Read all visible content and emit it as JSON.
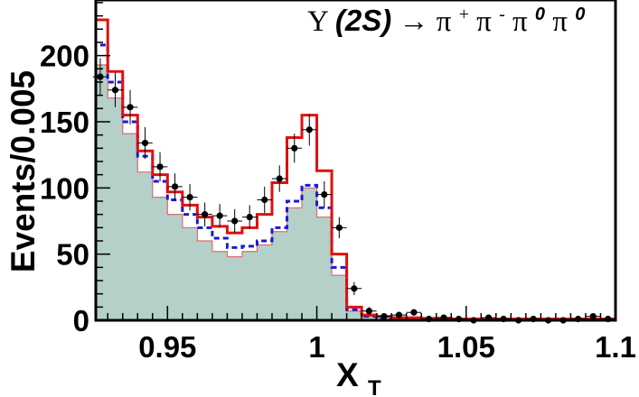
{
  "chart_data": {
    "type": "histogram",
    "title_parts": {
      "upsilon": "Υ",
      "state": "(2S)",
      "arrow": "→ π",
      "plus": "+",
      "pi2": " π",
      "minus": "-",
      "pi3": " π",
      "zero1": "0",
      "pi4": " π",
      "zero2": "0"
    },
    "xlabel": "X",
    "xlabel_sub": "T",
    "ylabel": "Events/0.005",
    "xlim": [
      0.926,
      1.1
    ],
    "ylim": [
      0,
      242
    ],
    "x_ticks": [
      {
        "value": 0.95,
        "label": "0.95"
      },
      {
        "value": 1.0,
        "label": "1"
      },
      {
        "value": 1.05,
        "label": "1.05"
      },
      {
        "value": 1.1,
        "label": "1.1"
      }
    ],
    "y_ticks": [
      {
        "value": 0,
        "label": "0"
      },
      {
        "value": 50,
        "label": "50"
      },
      {
        "value": 100,
        "label": "100"
      },
      {
        "value": 150,
        "label": "150"
      },
      {
        "value": 200,
        "label": "200"
      }
    ],
    "bin_edges": [
      0.926,
      0.93,
      0.935,
      0.94,
      0.945,
      0.95,
      0.955,
      0.96,
      0.965,
      0.97,
      0.975,
      0.98,
      0.985,
      0.99,
      0.995,
      1.0,
      1.005,
      1.01,
      1.015,
      1.02,
      1.025,
      1.03,
      1.035,
      1.04,
      1.045,
      1.05,
      1.055,
      1.06,
      1.065,
      1.07,
      1.075,
      1.08,
      1.085,
      1.09,
      1.095,
      1.1
    ],
    "series": [
      {
        "style": "filled",
        "color": "#b4d0c8",
        "edge_color": "#e06a6a",
        "values": [
          193,
          168,
          141,
          112,
          93,
          80,
          70,
          60,
          52,
          48,
          52,
          57,
          67,
          85,
          100,
          78,
          34,
          7,
          3,
          2,
          1.5,
          1.5,
          1,
          1,
          1,
          0.5,
          0.5,
          0.5,
          0.5,
          0.5,
          0.5,
          0.5,
          0.5,
          0.5,
          0.5
        ]
      },
      {
        "style": "dashed",
        "color": "#1a1ad6",
        "values": [
          208,
          180,
          150,
          124,
          105,
          91,
          80,
          70,
          62,
          55,
          56,
          60,
          70,
          90,
          102,
          85,
          40,
          8,
          3,
          2,
          1.5,
          1.5,
          1,
          1,
          1,
          0.5,
          0.5,
          0.5,
          0.5,
          0.5,
          0.5,
          0.5,
          0.5,
          0.5,
          0.5
        ]
      },
      {
        "style": "solid",
        "color": "#e01010",
        "values": [
          227,
          188,
          155,
          128,
          110,
          97,
          87,
          78,
          71,
          66,
          70,
          80,
          104,
          138,
          155,
          113,
          50,
          10,
          4,
          3,
          2,
          2,
          1.5,
          1.5,
          1,
          1,
          1,
          1,
          1,
          1,
          1,
          1,
          1,
          1,
          1
        ]
      }
    ],
    "data_points": {
      "x": [
        0.9275,
        0.9325,
        0.9375,
        0.9425,
        0.9475,
        0.9525,
        0.9575,
        0.9625,
        0.9675,
        0.9725,
        0.9775,
        0.9825,
        0.9875,
        0.9925,
        0.9975,
        1.0025,
        1.0075,
        1.0125,
        1.0175,
        1.0225,
        1.0275,
        1.0325,
        1.0375,
        1.0425,
        1.0475,
        1.0525,
        1.0575,
        1.0625,
        1.0675,
        1.0725,
        1.0775,
        1.0825,
        1.0875,
        1.0925,
        1.0975
      ],
      "y": [
        184,
        174,
        161,
        134,
        116,
        101,
        93,
        80,
        79,
        75,
        78,
        91,
        107,
        130,
        144,
        95,
        70,
        24,
        7,
        3,
        4,
        6,
        1,
        2,
        1,
        0,
        2,
        1,
        0,
        1,
        0,
        0,
        1,
        3,
        1
      ],
      "yerr": [
        14,
        13,
        13,
        12,
        11,
        10,
        10,
        9,
        9,
        9,
        9,
        10,
        10,
        11,
        12,
        10,
        8,
        5,
        3,
        2,
        2,
        2.5,
        1,
        1.5,
        1,
        0,
        1.5,
        1,
        0,
        1,
        0,
        0,
        1,
        2,
        1
      ]
    }
  }
}
